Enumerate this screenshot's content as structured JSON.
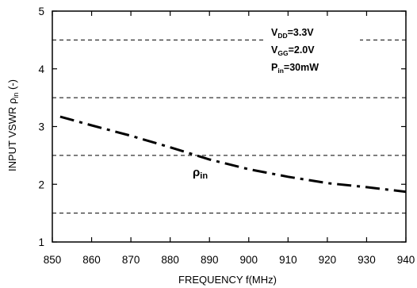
{
  "chart_data": {
    "type": "line",
    "xlabel": "FREQUENCY f(MHz)",
    "ylabel": {
      "text": "INPUT VSWR ρ",
      "sub": "in",
      "suffix": " (-)"
    },
    "xlim": [
      850,
      940
    ],
    "ylim": [
      1,
      5
    ],
    "xticks": [
      850,
      860,
      870,
      880,
      890,
      900,
      910,
      920,
      930,
      940
    ],
    "yticks": [
      1,
      2,
      3,
      4,
      5
    ],
    "grid": "dashed horizontal at 1.5, 2.5, 3.5, 4.5",
    "series": [
      {
        "style": "dash-dot",
        "color": "#000000",
        "x": [
          852,
          860,
          870,
          880,
          890,
          900,
          910,
          920,
          930,
          940
        ],
        "y": [
          3.17,
          3.02,
          2.84,
          2.64,
          2.43,
          2.26,
          2.13,
          2.02,
          1.95,
          1.87
        ]
      }
    ],
    "curve_label": {
      "text": "ρ",
      "sub": "in"
    },
    "annotations": [
      {
        "main": "V",
        "sub": "DD",
        "rest": "=3.3V"
      },
      {
        "main": "V",
        "sub": "GG",
        "rest": "=2.0V"
      },
      {
        "main": "P",
        "sub": "in",
        "rest": "=30mW"
      }
    ]
  }
}
